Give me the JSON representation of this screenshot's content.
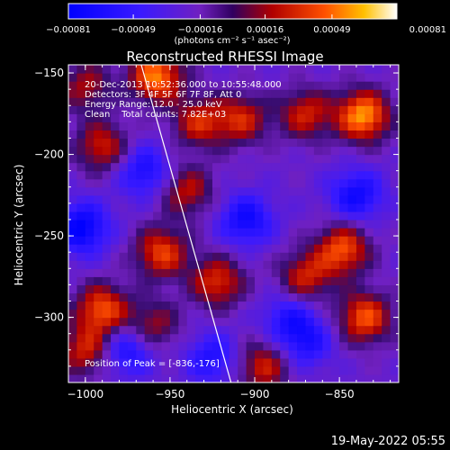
{
  "chart_data": {
    "type": "heatmap",
    "title": "Reconstructed RHESSI Image",
    "xlabel": "Heliocentric X (arcsec)",
    "ylabel": "Heliocentric Y (arcsec)",
    "xlim": [
      -1010,
      -815
    ],
    "ylim": [
      -340,
      -145
    ],
    "x_ticks": [
      -1000,
      -950,
      -900,
      -850
    ],
    "y_ticks": [
      -150,
      -200,
      -250,
      -300
    ],
    "x_tick_labels": [
      "−1000",
      "−950",
      "−900",
      "−850"
    ],
    "y_tick_labels": [
      "−150",
      "−200",
      "−250",
      "−300"
    ],
    "colorbar": {
      "ticks": [
        -0.00081,
        -0.00049,
        -0.00016,
        0.00016,
        0.00049,
        0.00081
      ],
      "tick_labels": [
        "−0.00081",
        "−0.00049",
        "−0.00016",
        "0.00016",
        "0.00049",
        "0.00081"
      ],
      "unit_label": "(photons cm⁻² s⁻¹ asec⁻²)",
      "range": [
        -0.00081,
        0.00081
      ]
    },
    "annotations": [
      "20-Dec-2013 10:52:36.000 to 10:55:48.000",
      "Detectors: 3F 4F 5F 6F 7F 8F, Att 0",
      "Energy Range: 12.0 - 25.0 keV",
      "Clean    Total counts: 7.82E+03"
    ],
    "peak_label": "Position of Peak = [-836,-176]",
    "peak": [
      -836,
      -176
    ],
    "limb_line": [
      [
        -967,
        -145
      ],
      [
        -914,
        -340
      ]
    ],
    "hotspots": [
      {
        "x": -958,
        "y": -152,
        "v": 0.00075
      },
      {
        "x": -933,
        "y": -180,
        "v": 0.0005
      },
      {
        "x": -990,
        "y": -195,
        "v": 0.0005
      },
      {
        "x": -908,
        "y": -178,
        "v": 0.0005
      },
      {
        "x": -870,
        "y": -175,
        "v": 0.0005
      },
      {
        "x": -836,
        "y": -176,
        "v": 0.00081
      },
      {
        "x": -1000,
        "y": -158,
        "v": 0.0004
      },
      {
        "x": -940,
        "y": -222,
        "v": 0.00045
      },
      {
        "x": -955,
        "y": -260,
        "v": 0.0006
      },
      {
        "x": -848,
        "y": -258,
        "v": 0.00065
      },
      {
        "x": -870,
        "y": -275,
        "v": 0.0005
      },
      {
        "x": -922,
        "y": -278,
        "v": 0.00055
      },
      {
        "x": -990,
        "y": -295,
        "v": 0.00065
      },
      {
        "x": -960,
        "y": -305,
        "v": 0.0004
      },
      {
        "x": -835,
        "y": -300,
        "v": 0.00065
      },
      {
        "x": -895,
        "y": -330,
        "v": 0.0005
      },
      {
        "x": -1000,
        "y": -320,
        "v": 0.0005
      }
    ],
    "coldspots": [
      {
        "x": -1002,
        "y": -245,
        "v": -0.0006
      },
      {
        "x": -965,
        "y": -210,
        "v": -0.00045
      },
      {
        "x": -905,
        "y": -240,
        "v": -0.0005
      },
      {
        "x": -840,
        "y": -225,
        "v": -0.0005
      },
      {
        "x": -975,
        "y": -320,
        "v": -0.00045
      },
      {
        "x": -925,
        "y": -325,
        "v": -0.0004
      },
      {
        "x": -870,
        "y": -315,
        "v": -0.0004
      },
      {
        "x": -880,
        "y": -300,
        "v": -0.00035
      }
    ]
  },
  "footer": {
    "date": "19-May-2022 05:55"
  }
}
